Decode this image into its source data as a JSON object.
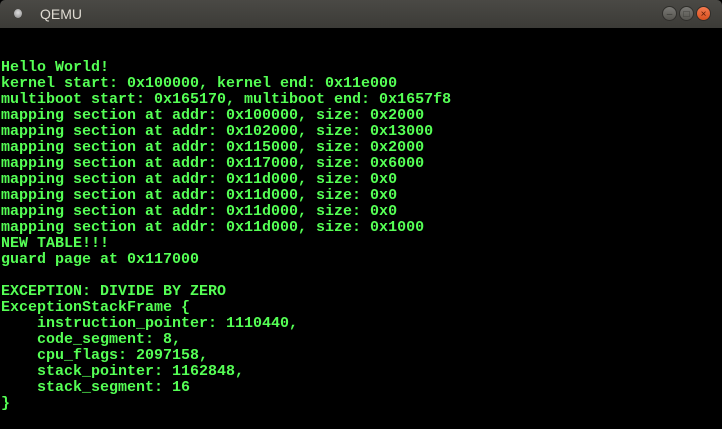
{
  "window": {
    "title": "QEMU",
    "controls": [
      "minimize",
      "maximize",
      "close"
    ]
  },
  "colors": {
    "text": "#55ff55",
    "background": "#000000",
    "close_button": "#e95420"
  },
  "terminal_lines": [
    "Hello World!",
    "kernel start: 0x100000, kernel end: 0x11e000",
    "multiboot start: 0x165170, multiboot end: 0x1657f8",
    "mapping section at addr: 0x100000, size: 0x2000",
    "mapping section at addr: 0x102000, size: 0x13000",
    "mapping section at addr: 0x115000, size: 0x2000",
    "mapping section at addr: 0x117000, size: 0x6000",
    "mapping section at addr: 0x11d000, size: 0x0",
    "mapping section at addr: 0x11d000, size: 0x0",
    "mapping section at addr: 0x11d000, size: 0x0",
    "mapping section at addr: 0x11d000, size: 0x1000",
    "NEW TABLE!!!",
    "guard page at 0x117000",
    "",
    "EXCEPTION: DIVIDE BY ZERO",
    "ExceptionStackFrame {",
    "    instruction_pointer: 1110440,",
    "    code_segment: 8,",
    "    cpu_flags: 2097158,",
    "    stack_pointer: 1162848,",
    "    stack_segment: 16",
    "}"
  ]
}
